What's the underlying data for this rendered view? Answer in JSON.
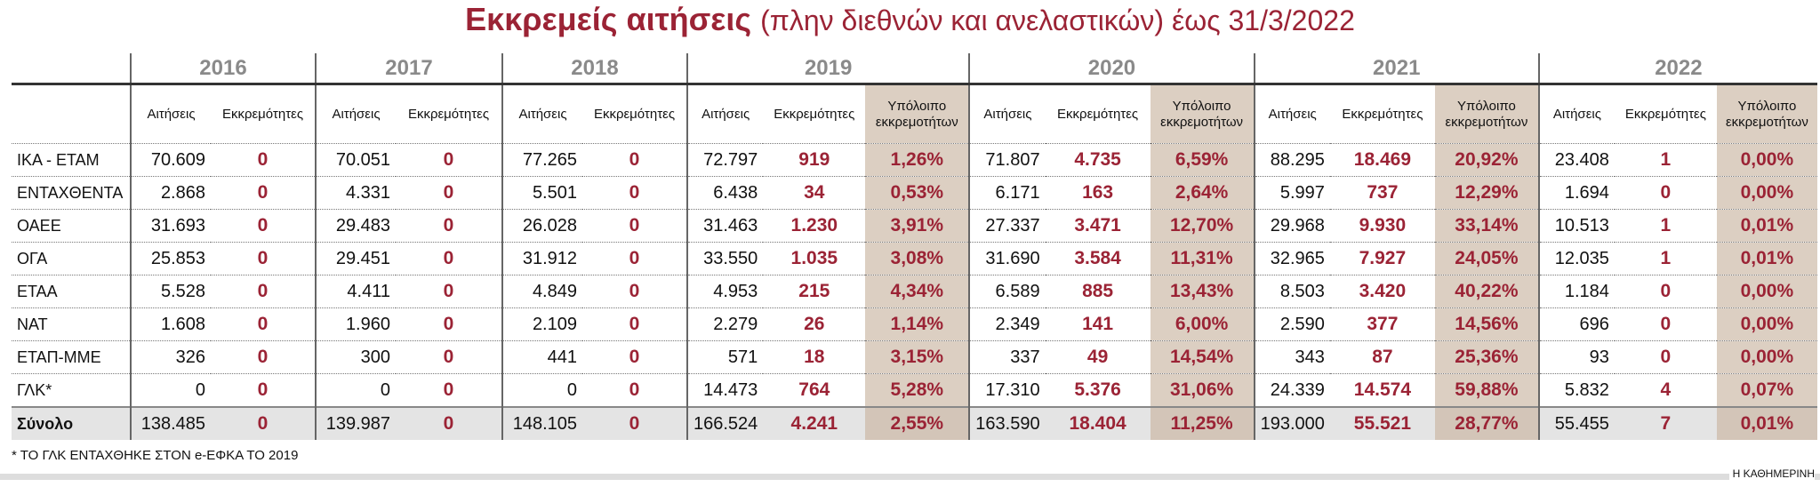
{
  "header": {
    "title": "Εκκρεμείς αιτήσεις",
    "subtitle": "(πλην διεθνών και ανελαστικών) έως 31/3/2022"
  },
  "table": {
    "years": [
      {
        "year": "2016",
        "columns": [
          "Αιτήσεις",
          "Εκκρεμότητες"
        ]
      },
      {
        "year": "2017",
        "columns": [
          "Αιτήσεις",
          "Εκκρεμότητες"
        ]
      },
      {
        "year": "2018",
        "columns": [
          "Αιτήσεις",
          "Εκκρεμότητες"
        ]
      },
      {
        "year": "2019",
        "columns": [
          "Αιτήσεις",
          "Εκκρεμότητες",
          "Υπόλοιπο εκκρεμοτήτων"
        ]
      },
      {
        "year": "2020",
        "columns": [
          "Αιτήσεις",
          "Εκκρεμότητες",
          "Υπόλοιπο εκκρεμοτήτων"
        ]
      },
      {
        "year": "2021",
        "columns": [
          "Αιτήσεις",
          "Εκκρεμότητες",
          "Υπόλοιπο εκκρεμοτήτων"
        ]
      },
      {
        "year": "2022",
        "columns": [
          "Αιτήσεις",
          "Εκκρεμότητες",
          "Υπόλοιπο εκκρεμοτήτων"
        ]
      }
    ],
    "rows": [
      {
        "label": "ΙΚΑ - ΕΤΑΜ",
        "cells": [
          "70.609",
          "0",
          "70.051",
          "0",
          "77.265",
          "0",
          "72.797",
          "919",
          "1,26%",
          "71.807",
          "4.735",
          "6,59%",
          "88.295",
          "18.469",
          "20,92%",
          "23.408",
          "1",
          "0,00%"
        ]
      },
      {
        "label": "ΕΝΤΑΧΘΕΝΤΑ",
        "cells": [
          "2.868",
          "0",
          "4.331",
          "0",
          "5.501",
          "0",
          "6.438",
          "34",
          "0,53%",
          "6.171",
          "163",
          "2,64%",
          "5.997",
          "737",
          "12,29%",
          "1.694",
          "0",
          "0,00%"
        ]
      },
      {
        "label": "ΟΑΕΕ",
        "cells": [
          "31.693",
          "0",
          "29.483",
          "0",
          "26.028",
          "0",
          "31.463",
          "1.230",
          "3,91%",
          "27.337",
          "3.471",
          "12,70%",
          "29.968",
          "9.930",
          "33,14%",
          "10.513",
          "1",
          "0,01%"
        ]
      },
      {
        "label": "ΟΓΑ",
        "cells": [
          "25.853",
          "0",
          "29.451",
          "0",
          "31.912",
          "0",
          "33.550",
          "1.035",
          "3,08%",
          "31.690",
          "3.584",
          "11,31%",
          "32.965",
          "7.927",
          "24,05%",
          "12.035",
          "1",
          "0,01%"
        ]
      },
      {
        "label": "ΕΤΑΑ",
        "cells": [
          "5.528",
          "0",
          "4.411",
          "0",
          "4.849",
          "0",
          "4.953",
          "215",
          "4,34%",
          "6.589",
          "885",
          "13,43%",
          "8.503",
          "3.420",
          "40,22%",
          "1.184",
          "0",
          "0,00%"
        ]
      },
      {
        "label": "ΝΑΤ",
        "cells": [
          "1.608",
          "0",
          "1.960",
          "0",
          "2.109",
          "0",
          "2.279",
          "26",
          "1,14%",
          "2.349",
          "141",
          "6,00%",
          "2.590",
          "377",
          "14,56%",
          "696",
          "0",
          "0,00%"
        ]
      },
      {
        "label": "ΕΤΑΠ-ΜΜΕ",
        "cells": [
          "326",
          "0",
          "300",
          "0",
          "441",
          "0",
          "571",
          "18",
          "3,15%",
          "337",
          "49",
          "14,54%",
          "343",
          "87",
          "25,36%",
          "93",
          "0",
          "0,00%"
        ]
      },
      {
        "label": "ΓΛΚ*",
        "cells": [
          "0",
          "0",
          "0",
          "0",
          "0",
          "0",
          "14.473",
          "764",
          "5,28%",
          "17.310",
          "5.376",
          "31,06%",
          "24.339",
          "14.574",
          "59,88%",
          "5.832",
          "4",
          "0,07%"
        ]
      },
      {
        "label": "Σύνολο",
        "cells": [
          "138.485",
          "0",
          "139.987",
          "0",
          "148.105",
          "0",
          "166.524",
          "4.241",
          "2,55%",
          "163.590",
          "18.404",
          "11,25%",
          "193.000",
          "55.521",
          "28,77%",
          "55.455",
          "7",
          "0,01%"
        ]
      }
    ]
  },
  "footnote": "* ΤΟ ΓΛΚ ΕΝΤΑΧΘΗΚΕ ΣΤΟΝ e-ΕΦΚΑ ΤΟ 2019",
  "source": "Η ΚΑΘΗΜΕΡΙΝΗ"
}
